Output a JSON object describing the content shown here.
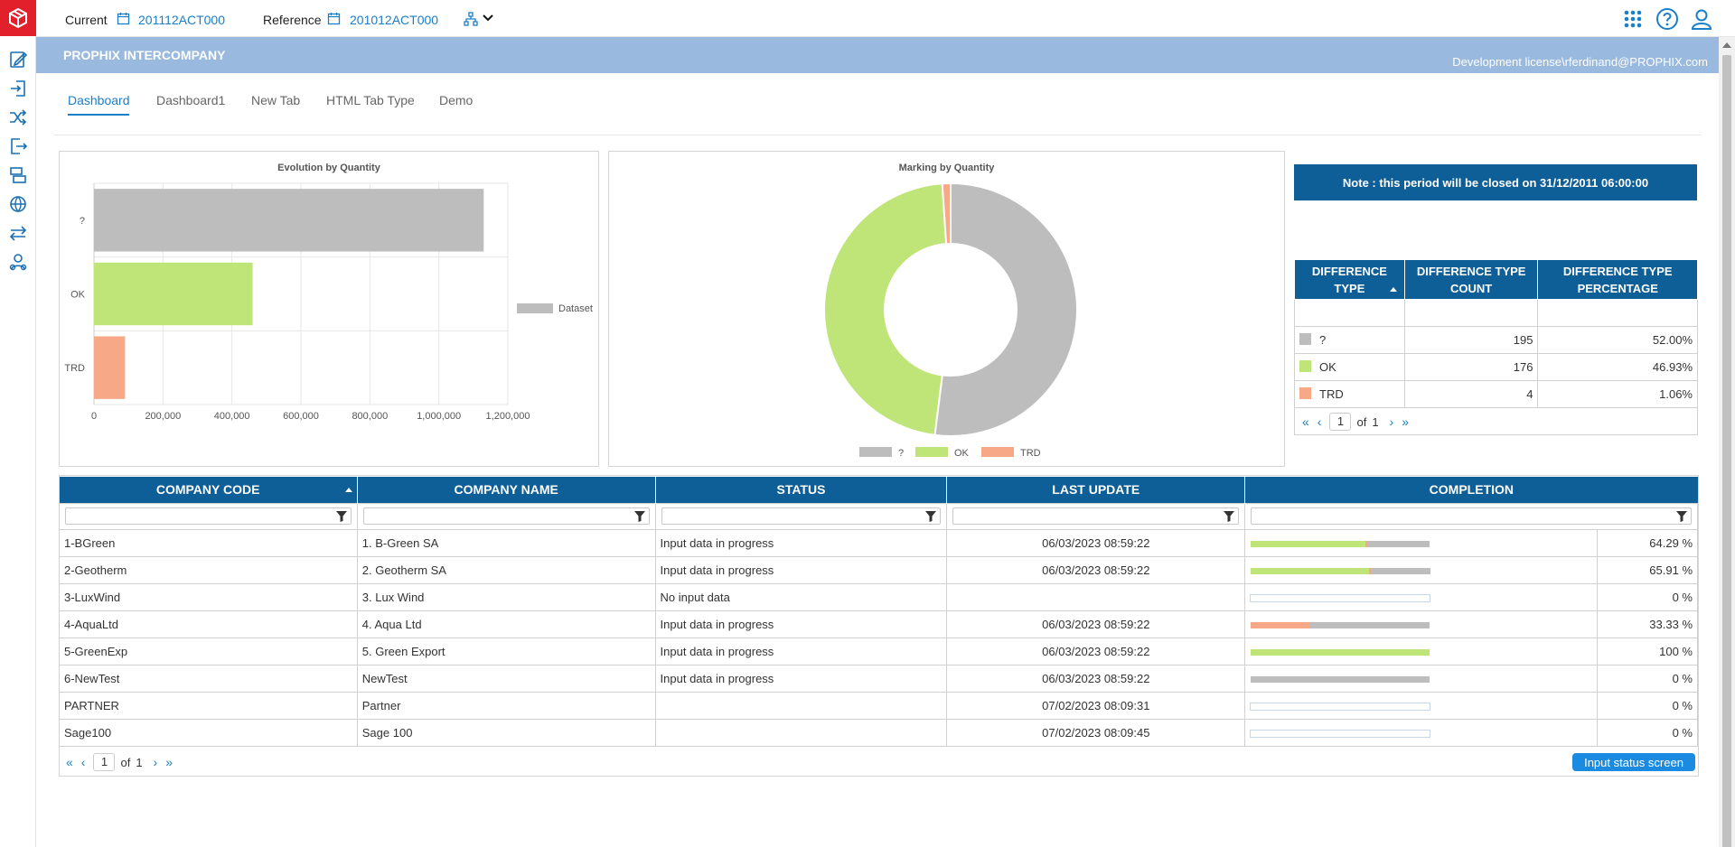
{
  "topbar": {
    "current_label": "Current",
    "current_value": "201112ACT000",
    "reference_label": "Reference",
    "reference_value": "201012ACT000"
  },
  "header": {
    "title": "PROPHIX INTERCOMPANY",
    "license": "Development license\\rferdinand@PROPHIX.com"
  },
  "tabs": [
    "Dashboard",
    "Dashboard1",
    "New Tab",
    "HTML Tab Type",
    "Demo"
  ],
  "active_tab": "Dashboard",
  "colors": {
    "brand": "#e2202c",
    "accent": "#1a7fc8",
    "header_band": "#99b9de",
    "table_header": "#0e5e97",
    "question": "#bdbdbd",
    "ok": "#bfe478",
    "trd": "#f7a886"
  },
  "icons": {
    "rail": [
      "edit-form-icon",
      "import-icon",
      "shuffle-icon",
      "export-icon",
      "layers-icon",
      "globe-icon",
      "transfer-icon",
      "org-users-icon"
    ],
    "topbar_right": [
      "apps-grid-icon",
      "help-icon",
      "user-icon"
    ]
  },
  "chart_data": [
    {
      "type": "bar",
      "orientation": "horizontal",
      "title": "Evolution by Quantity",
      "categories": [
        "?",
        "OK",
        "TRD"
      ],
      "series": [
        {
          "name": "Dataset",
          "values": [
            1130000,
            460000,
            90000
          ]
        }
      ],
      "xlim": [
        0,
        1200000
      ],
      "xticks": [
        "0",
        "200,000",
        "400,000",
        "600,000",
        "800,000",
        "1,000,000",
        "1,200,000"
      ],
      "bar_colors": [
        "#bdbdbd",
        "#bfe478",
        "#f7a886"
      ],
      "grid": true,
      "legend": "right"
    },
    {
      "type": "pie",
      "variant": "donut",
      "title": "Marking by Quantity",
      "labels": [
        "?",
        "OK",
        "TRD"
      ],
      "values": [
        52.0,
        46.93,
        1.06
      ],
      "colors": [
        "#bdbdbd",
        "#bfe478",
        "#f7a886"
      ],
      "legend": "bottom"
    }
  ],
  "note": "Note : this period will be closed on 31/12/2011 06:00:00",
  "diff_table": {
    "headers": [
      "DIFFERENCE TYPE",
      "DIFFERENCE TYPE COUNT",
      "DIFFERENCE TYPE PERCENTAGE"
    ],
    "rows": [
      {
        "type": "?",
        "count": "195",
        "percentage": "52.00%",
        "color": "#bdbdbd"
      },
      {
        "type": "OK",
        "count": "176",
        "percentage": "46.93%",
        "color": "#bfe478"
      },
      {
        "type": "TRD",
        "count": "4",
        "percentage": "1.06%",
        "color": "#f7a886"
      }
    ],
    "pager": {
      "page": "1",
      "of_label": "of",
      "total": "1"
    }
  },
  "companies": {
    "headers": [
      "COMPANY CODE",
      "COMPANY NAME",
      "STATUS",
      "LAST UPDATE",
      "COMPLETION"
    ],
    "rows": [
      {
        "code": "1-BGreen",
        "name": "1. B-Green SA",
        "status": "Input data in progress",
        "last_update": "06/03/2023 08:59:22",
        "completion": "64.29 %",
        "bar": {
          "ok": 0.6429,
          "trd": 0.01,
          "rest": 0.3471
        }
      },
      {
        "code": "2-Geotherm",
        "name": "2. Geotherm SA",
        "status": "Input data in progress",
        "last_update": "06/03/2023 08:59:22",
        "completion": "65.91 %",
        "bar": {
          "ok": 0.6591,
          "trd": 0.01,
          "rest": 0.3309
        }
      },
      {
        "code": "3-LuxWind",
        "name": "3. Lux Wind",
        "status": "No input data",
        "last_update": "",
        "completion": "0 %",
        "bar": {
          "ok": 0,
          "trd": 0,
          "rest": 0
        }
      },
      {
        "code": "4-AquaLtd",
        "name": "4. Aqua Ltd",
        "status": "Input data in progress",
        "last_update": "06/03/2023 08:59:22",
        "completion": "33.33 %",
        "bar": {
          "ok": 0,
          "trd": 0.3333,
          "rest": 0.6667
        }
      },
      {
        "code": "5-GreenExp",
        "name": "5. Green Export",
        "status": "Input data in progress",
        "last_update": "06/03/2023 08:59:22",
        "completion": "100 %",
        "bar": {
          "ok": 1.0,
          "trd": 0,
          "rest": 0
        }
      },
      {
        "code": "6-NewTest",
        "name": "NewTest",
        "status": "Input data in progress",
        "last_update": "06/03/2023 08:59:22",
        "completion": "0 %",
        "bar": {
          "ok": 0,
          "trd": 0,
          "rest": 1.0
        }
      },
      {
        "code": "PARTNER",
        "name": "Partner",
        "status": "",
        "last_update": "07/02/2023 08:09:31",
        "completion": "0 %",
        "bar": {
          "ok": 0,
          "trd": 0,
          "rest": 0
        }
      },
      {
        "code": "Sage100",
        "name": "Sage 100",
        "status": "",
        "last_update": "07/02/2023 08:09:45",
        "completion": "0 %",
        "bar": {
          "ok": 0,
          "trd": 0,
          "rest": 0
        }
      }
    ],
    "pager": {
      "page": "1",
      "of_label": "of",
      "total": "1"
    },
    "button_label": "Input status screen"
  }
}
